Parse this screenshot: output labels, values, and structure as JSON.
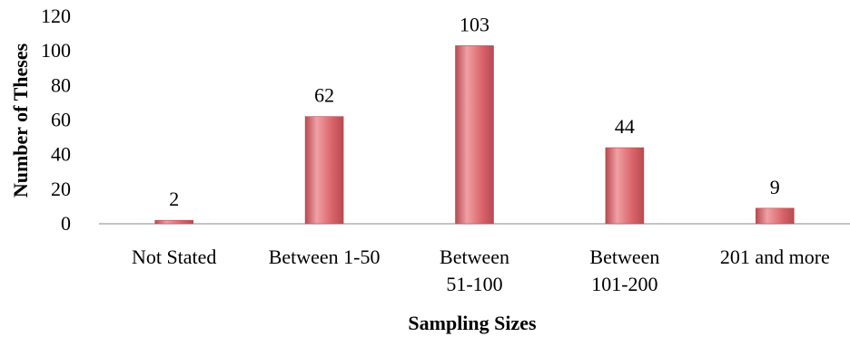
{
  "chart_data": {
    "type": "bar",
    "categories": [
      [
        "Not Stated"
      ],
      [
        "Between 1-50"
      ],
      [
        "Between",
        "51-100"
      ],
      [
        "Between",
        "101-200"
      ],
      [
        "201 and more"
      ]
    ],
    "values": [
      2,
      62,
      103,
      44,
      9
    ],
    "data_labels": [
      "2",
      "62",
      "103",
      "44",
      "9"
    ],
    "xlabel": "Sampling Sizes",
    "ylabel": "Number of Theses",
    "ylim": [
      0,
      120
    ],
    "yticks": [
      "0",
      "20",
      "40",
      "60",
      "80",
      "100",
      "120"
    ],
    "grid": false,
    "legend": "none",
    "bar_color": "#d9646a",
    "bar_highlight": "#f0a0a4",
    "bar_shade": "#b84a52"
  }
}
